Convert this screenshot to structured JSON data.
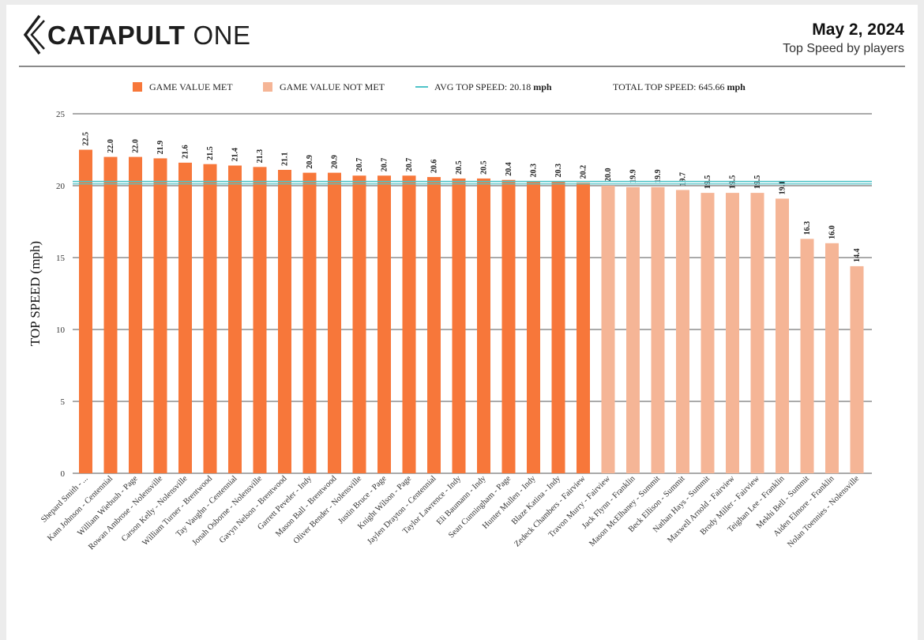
{
  "header": {
    "brand_bold": "CATAPULT",
    "brand_light": "ONE",
    "date": "May 2, 2024",
    "subtitle": "Top Speed by players"
  },
  "legend": {
    "met_label": "GAME VALUE MET",
    "not_met_label": "GAME VALUE NOT MET",
    "avg_label": "AVG TOP SPEED: 20.18",
    "avg_unit": "mph",
    "total_label": "TOTAL TOP SPEED: 645.66",
    "total_unit": "mph"
  },
  "colors": {
    "met": "#f7773a",
    "not_met": "#f5b596",
    "avg_line": "#4fc3c8",
    "grid": "#555555"
  },
  "chart_data": {
    "type": "bar",
    "title": "Top Speed by players",
    "ylabel": "TOP SPEED (mph)",
    "xlabel": "",
    "ylim": [
      0,
      25
    ],
    "yticks": [
      0,
      5,
      10,
      15,
      20,
      25
    ],
    "grid": true,
    "legend_position": "top",
    "avg_line": 20.18,
    "categories": [
      "Shepard Smith - ...",
      "Kam Johnson - Centennial",
      "William Wiebush - Page",
      "Rowan Ambrose - Nolensville",
      "Carson Kelly - Nolensville",
      "William Turner - Brentwood",
      "Tay Vaughn - Centennial",
      "Jonah Osborne - Nolensville",
      "Gavyn Nelson - Brentwood",
      "Garrett Peveler - Indy",
      "Mason Ball - Brentwood",
      "Oliver Bender - Nolensville",
      "Justin Bruce - Page",
      "Knight Wilson - Page",
      "Jaylen Drayton - Centennial",
      "Taylor Lawrence - Indy",
      "Eli Baumann - Indy",
      "Sean Cunningham - Page",
      "Hunter Mullen - Indy",
      "Blaze Katina - Indy",
      "Zedeck Chambers - Fairview",
      "Travon Murry - Fairview",
      "Jack Flynn - Franklin",
      "Mason McElhaney - Summit",
      "Beck Ellison - Summit",
      "Nathan Hays - Summit",
      "Maxwell Arnold - Fairview",
      "Brody Miller - Fairview",
      "Teighan Lee - Franklin",
      "Mekhi Bell - Summit",
      "Aiden Elmore - Franklin",
      "Nolan Toennies - Nolensville"
    ],
    "values": [
      22.5,
      22.0,
      22.0,
      21.9,
      21.6,
      21.5,
      21.4,
      21.3,
      21.1,
      20.9,
      20.9,
      20.7,
      20.7,
      20.7,
      20.6,
      20.5,
      20.5,
      20.4,
      20.3,
      20.3,
      20.2,
      20.0,
      19.9,
      19.9,
      19.7,
      19.5,
      19.5,
      19.5,
      19.1,
      16.3,
      16.0,
      14.4
    ],
    "value_labels": [
      "22.5",
      "22.0",
      "22.0",
      "21.9",
      "21.6",
      "21.5",
      "21.4",
      "21.3",
      "21.1",
      "20.9",
      "20.9",
      "20.7",
      "20.7",
      "20.7",
      "20.6",
      "20.5",
      "20.5",
      "20.4",
      "20.3",
      "20.3",
      "20.2",
      "20.0",
      "19.9",
      "19.9",
      "19.7",
      "19.5",
      "19.5",
      "19.5",
      "19.1",
      "16.3",
      "16.0",
      "14.4"
    ],
    "game_value_met": [
      true,
      true,
      true,
      true,
      true,
      true,
      true,
      true,
      true,
      true,
      true,
      true,
      true,
      true,
      true,
      true,
      true,
      true,
      true,
      true,
      true,
      false,
      false,
      false,
      false,
      false,
      false,
      false,
      false,
      false,
      false,
      false
    ]
  }
}
